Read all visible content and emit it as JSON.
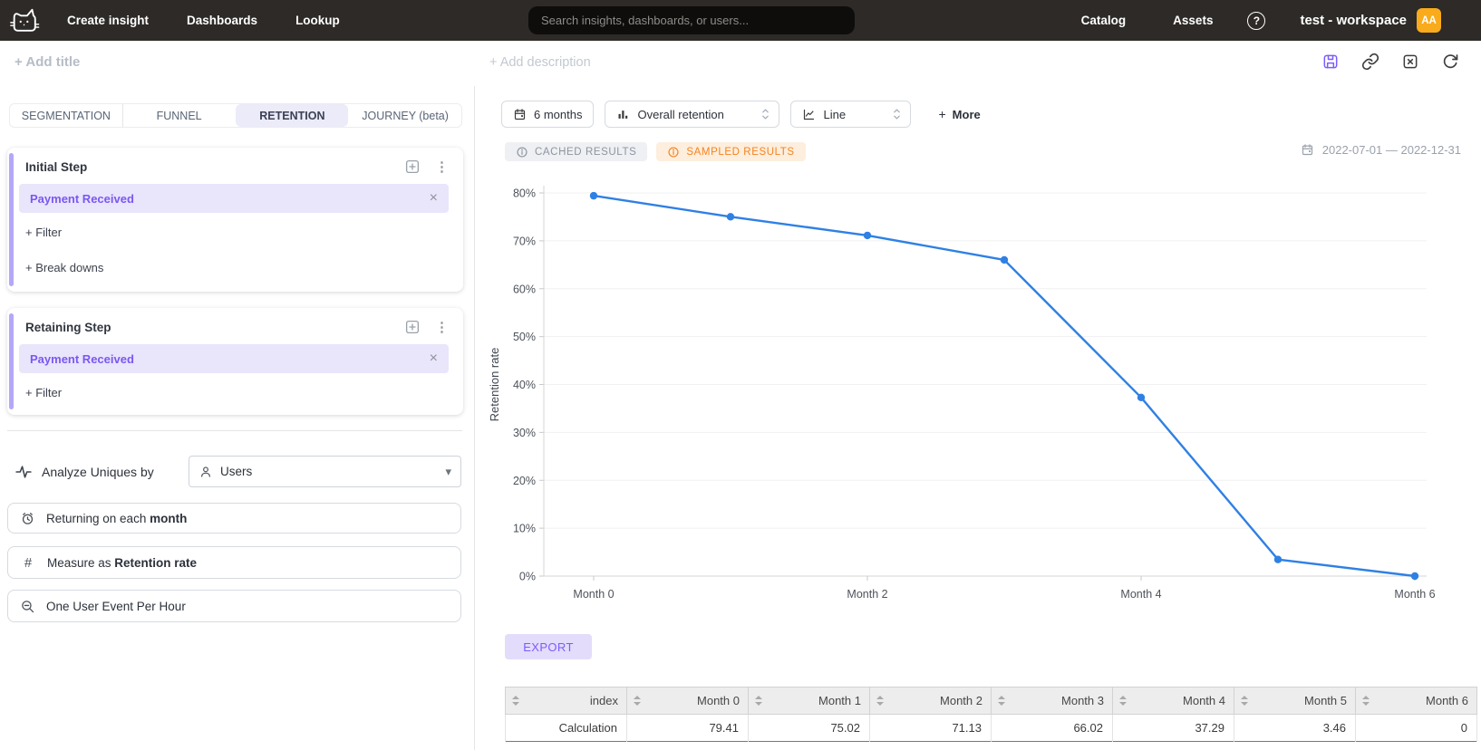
{
  "topnav": {
    "items": [
      {
        "label": "Create insight"
      },
      {
        "label": "Dashboards"
      },
      {
        "label": "Lookup"
      }
    ],
    "search_placeholder": "Search insights, dashboards, or users...",
    "right_items": [
      {
        "label": "Catalog"
      },
      {
        "label": "Assets"
      }
    ],
    "help_glyph": "?",
    "workspace": "test - workspace",
    "avatar_initials": "AA",
    "avatar_color": "#f9ab1c"
  },
  "header": {
    "add_title": "+ Add title",
    "add_description": "+ Add description"
  },
  "builder": {
    "tabs": [
      {
        "label": "SEGMENTATION",
        "active": false
      },
      {
        "label": "FUNNEL",
        "active": false
      },
      {
        "label": "RETENTION",
        "active": true
      },
      {
        "label": "JOURNEY (beta)",
        "active": false
      }
    ],
    "initial_step": {
      "title": "Initial Step",
      "event": "Payment Received",
      "filter_action": "+ Filter",
      "breakdown_action": "+ Break downs"
    },
    "retaining_step": {
      "title": "Retaining Step",
      "event": "Payment Received",
      "filter_action": "+ Filter"
    },
    "analyze_label": "Analyze Uniques by",
    "analyze_value": "Users",
    "returning_prefix": "Returning on each ",
    "returning_bold": "month",
    "measure_prefix": "Measure as ",
    "measure_bold": "Retention rate",
    "sampling_label": "One User Event Per Hour"
  },
  "toolbar": {
    "date_button": "6 months",
    "metric_select": "Overall retention",
    "chart_type_select": "Line",
    "more_plus": "+",
    "more_label": "More"
  },
  "status": {
    "cached_badge": "CACHED RESULTS",
    "sampled_badge": "SAMPLED RESULTS",
    "date_range": "2022-07-01 — 2022-12-31"
  },
  "chart_data": {
    "type": "line",
    "title": "",
    "categories": [
      "Month 0",
      "Month 1",
      "Month 2",
      "Month 3",
      "Month 4",
      "Month 5",
      "Month 6"
    ],
    "values": [
      79.41,
      75.02,
      71.13,
      66.02,
      37.29,
      3.46,
      0
    ],
    "xlabel": "",
    "ylabel": "Retention rate",
    "ylim": [
      0,
      80
    ],
    "y_tick_step": 10,
    "y_tick_suffix": "%",
    "x_tick_indices": [
      0,
      2,
      4,
      6
    ],
    "grid": true,
    "legend_position": "none",
    "line_color": "#2f80e4"
  },
  "export_label": "EXPORT",
  "table": {
    "headers": [
      "index",
      "Month 0",
      "Month 1",
      "Month 2",
      "Month 3",
      "Month 4",
      "Month 5",
      "Month 6"
    ],
    "rows": [
      [
        "Calculation",
        "79.41",
        "75.02",
        "71.13",
        "66.02",
        "37.29",
        "3.46",
        "0"
      ]
    ]
  },
  "icons": {
    "dots": "⋮",
    "close": "×",
    "caret_down": "▾"
  },
  "colors": {
    "accent_purple": "#7c5cfc",
    "chip_bg": "#e9e5fb",
    "line_blue": "#2f80e4",
    "sampled_orange": "#f5831f",
    "avatar_orange": "#f9ab1c",
    "nav_bg": "#2d2a27"
  }
}
